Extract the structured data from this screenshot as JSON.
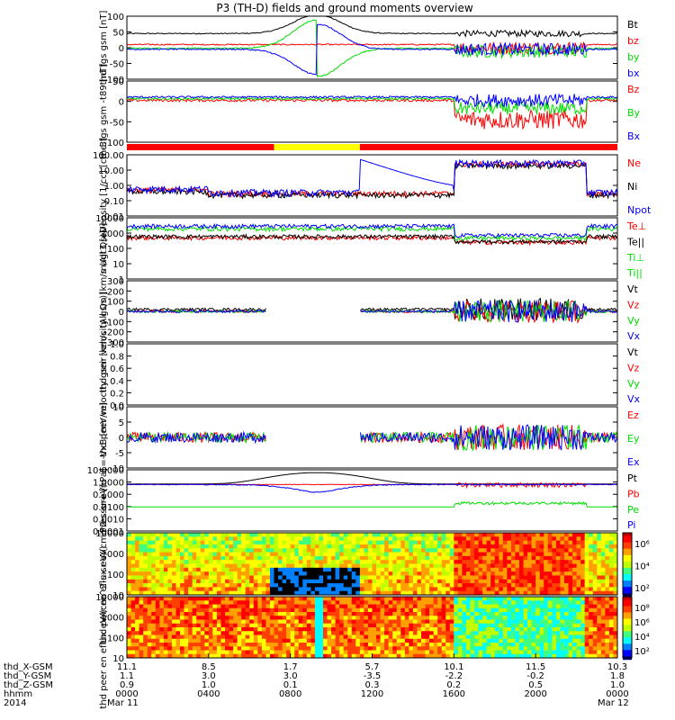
{
  "title": "P3 (TH-D) fields and ground moments overview",
  "colors": {
    "black": "#000000",
    "red": "#ff0000",
    "green": "#00dd00",
    "blue": "#0000ff",
    "yellow": "#ffff00"
  },
  "chart_data": {
    "type": "line",
    "x_domain_hours": [
      0,
      24
    ],
    "panels": [
      {
        "id": "fgs",
        "ylabel": "thd fgs gsm [nT]",
        "ylim": [
          -100,
          100
        ],
        "yticks": [
          "100",
          "50",
          "0",
          "-50",
          "-100"
        ],
        "legend": [
          {
            "name": "Bt",
            "color": "#000000"
          },
          {
            "name": "bz",
            "color": "#ff0000"
          },
          {
            "name": "by",
            "color": "#00dd00"
          },
          {
            "name": "bx",
            "color": "#0000ff"
          }
        ]
      },
      {
        "id": "fgs_t89",
        "ylabel": "thd fgs gsm -t89 [nT]",
        "ylim": [
          -140,
          50
        ],
        "yticks": [
          "50",
          "0",
          "-50",
          "-100"
        ],
        "legend": [
          {
            "name": "Bz",
            "color": "#ff0000"
          },
          {
            "name": "By",
            "color": "#00dd00"
          },
          {
            "name": "Bx",
            "color": "#0000ff"
          }
        ]
      },
      {
        "id": "density",
        "ylabel": "Density [1/cc] [cm-3]",
        "log": true,
        "ylim": [
          0.01,
          100
        ],
        "yticks": [
          "100.00",
          "10.00",
          "1.00",
          "0.10",
          "0.01"
        ],
        "legend": [
          {
            "name": "Ne",
            "color": "#ff0000"
          },
          {
            "name": "Ni",
            "color": "#000000"
          },
          {
            "name": "Npot",
            "color": "#0000ff"
          }
        ]
      },
      {
        "id": "temp",
        "ylabel": "magt3 [eV]",
        "log": true,
        "ylim": [
          1,
          10000
        ],
        "yticks": [
          "10000",
          "1000",
          "100",
          "10",
          "1"
        ],
        "legend": [
          {
            "name": "Te⊥",
            "color": "#ff0000"
          },
          {
            "name": "Te||",
            "color": "#000000"
          },
          {
            "name": "Ti⊥",
            "color": "#00dd00"
          },
          {
            "name": "Ti||",
            "color": "#00dd00"
          }
        ]
      },
      {
        "id": "peir_vel",
        "ylabel": "thd peir velocity gsm [km/s (All Qs)]",
        "ylim": [
          -300,
          300
        ],
        "yticks": [
          "300",
          "200",
          "100",
          "0",
          "-100",
          "-200",
          "-300"
        ],
        "legend": [
          {
            "name": "Vt",
            "color": "#000000"
          },
          {
            "name": "Vz",
            "color": "#ff0000"
          },
          {
            "name": "Vy",
            "color": "#00dd00"
          },
          {
            "name": "Vx",
            "color": "#0000ff"
          }
        ]
      },
      {
        "id": "peer_vel",
        "ylabel": "thd peer velocity gsm [km/s (All Qs)]",
        "ylim": [
          0,
          1
        ],
        "yticks": [
          "1.0",
          "0.8",
          "0.6",
          "0.4",
          "0.2",
          "0.0"
        ],
        "legend": [
          {
            "name": "Vt",
            "color": "#000000"
          },
          {
            "name": "Vz",
            "color": "#ff0000"
          },
          {
            "name": "Vy",
            "color": "#00dd00"
          },
          {
            "name": "Vx",
            "color": "#0000ff"
          }
        ]
      },
      {
        "id": "efield",
        "ylabel": "E=-VxB [mV/m]",
        "ylim": [
          -12,
          12
        ],
        "yticks": [
          "10",
          "5",
          "0",
          "-5",
          "-10"
        ],
        "legend": [
          {
            "name": "Ez",
            "color": "#ff0000"
          },
          {
            "name": "Ey",
            "color": "#00dd00"
          },
          {
            "name": "Ex",
            "color": "#0000ff"
          }
        ]
      },
      {
        "id": "pressure",
        "ylabel": "Pressure [nPa]",
        "log": true,
        "ylim": [
          5e-05,
          20
        ],
        "yticks": [
          "10.0000",
          "1.0000",
          "0.1000",
          "0.0100",
          "0.0010",
          "0.0001"
        ],
        "legend": [
          {
            "name": "Pt",
            "color": "#000000"
          },
          {
            "name": "Pb",
            "color": "#ff0000"
          },
          {
            "name": "Pe",
            "color": "#00dd00"
          },
          {
            "name": "Pi",
            "color": "#0000ff"
          }
        ]
      },
      {
        "id": "peir_spec",
        "ylabel": "thd peir en eflux eV/(cm^2-s-sr-eV)",
        "spectrogram": true,
        "yticks": [
          "10000",
          "1000",
          "100",
          "10"
        ],
        "cbar_ticks": [
          "10⁶",
          "10⁴",
          "10²"
        ]
      },
      {
        "id": "peer_spec",
        "ylabel": "thd peer en eflux eV/(cm^2-s-sr-eV)",
        "spectrogram": true,
        "yticks": [
          "10000",
          "1000",
          "100",
          "10"
        ],
        "cbar_ticks": [
          "10⁸",
          "10⁶",
          "10⁴",
          "10²"
        ]
      }
    ],
    "mode_bar": [
      {
        "from": 0,
        "to": 7.2,
        "color": "#ff0000"
      },
      {
        "from": 7.2,
        "to": 11.4,
        "color": "#ffff00"
      },
      {
        "from": 11.4,
        "to": 24,
        "color": "#ff0000"
      }
    ],
    "xaxis": {
      "row_labels": [
        "thd_X-GSM",
        "thd_Y-GSM",
        "thd_Z-GSM",
        "hhmm",
        "2014"
      ],
      "columns": [
        {
          "h": 0,
          "values": [
            "11.1",
            "1.1",
            "0.9",
            "0000",
            "Mar 11"
          ]
        },
        {
          "h": 4,
          "values": [
            "8.5",
            "3.0",
            "1.0",
            "0400",
            ""
          ]
        },
        {
          "h": 8,
          "values": [
            "1.7",
            "3.0",
            "0.1",
            "0800",
            ""
          ]
        },
        {
          "h": 12,
          "values": [
            "5.7",
            "-3.5",
            "0.3",
            "1200",
            ""
          ]
        },
        {
          "h": 16,
          "values": [
            "10.1",
            "-2.2",
            "0.2",
            "1600",
            ""
          ]
        },
        {
          "h": 20,
          "values": [
            "11.5",
            "-0.2",
            "0.5",
            "2000",
            ""
          ]
        },
        {
          "h": 24,
          "values": [
            "10.3",
            "1.8",
            "1.0",
            "0000",
            "Mar 12"
          ]
        }
      ]
    }
  }
}
